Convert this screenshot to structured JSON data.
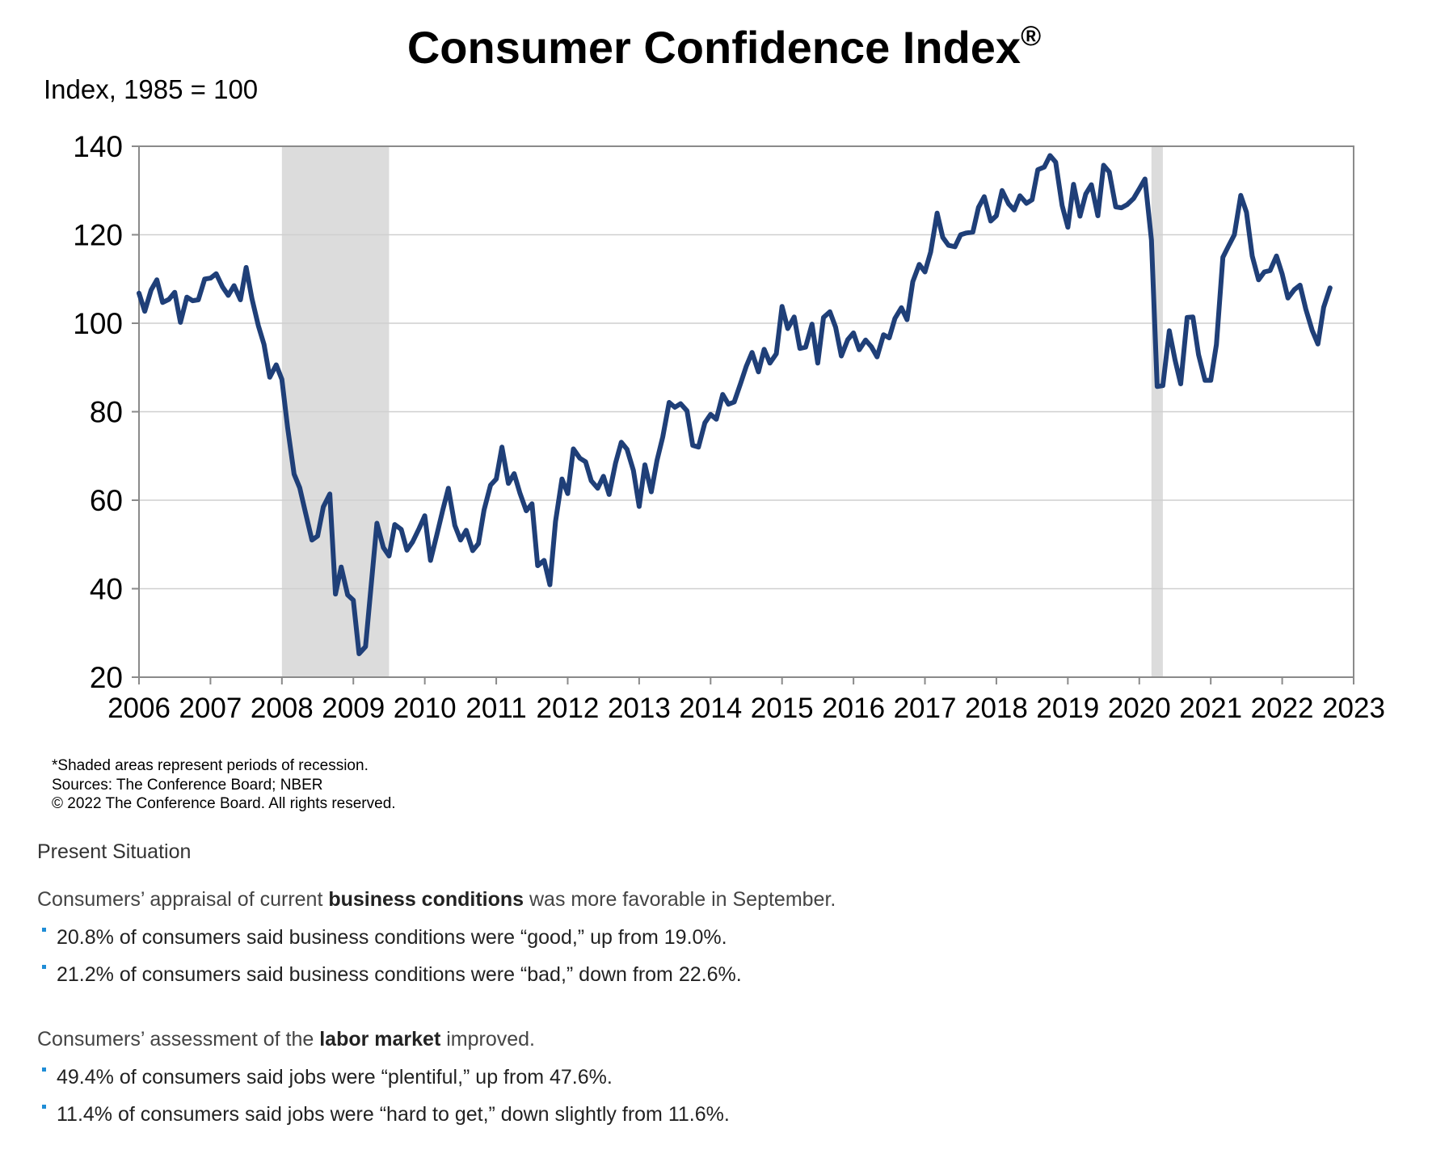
{
  "chart_data": {
    "type": "line",
    "title": "Consumer Confidence Index",
    "title_mark": "®",
    "ylabel": "Index, 1985 = 100",
    "ylim": [
      20,
      140
    ],
    "yticks": [
      "140",
      "120",
      "100",
      "80",
      "60",
      "40",
      "20"
    ],
    "xlim": [
      2006.0,
      2023.0
    ],
    "xticks": [
      "2006",
      "2007",
      "2008",
      "2009",
      "2010",
      "2011",
      "2012",
      "2013",
      "2014",
      "2015",
      "2016",
      "2017",
      "2018",
      "2019",
      "2020",
      "2021",
      "2022",
      "2023"
    ],
    "grid": true,
    "legend": "none",
    "line_color": "#1f3f78",
    "recession_color": "#dcdcdc",
    "recessions": [
      [
        2008.0,
        2009.5
      ],
      [
        2020.17,
        2020.33
      ]
    ],
    "series": [
      {
        "points": [
          [
            2006.0,
            106.8
          ],
          [
            2006.08,
            102.7
          ],
          [
            2006.17,
            107.5
          ],
          [
            2006.25,
            109.8
          ],
          [
            2006.33,
            104.7
          ],
          [
            2006.42,
            105.4
          ],
          [
            2006.5,
            107.0
          ],
          [
            2006.58,
            100.2
          ],
          [
            2006.67,
            105.9
          ],
          [
            2006.75,
            105.1
          ],
          [
            2006.83,
            105.3
          ],
          [
            2006.92,
            110.0
          ],
          [
            2007.0,
            110.2
          ],
          [
            2007.08,
            111.2
          ],
          [
            2007.17,
            108.2
          ],
          [
            2007.25,
            106.3
          ],
          [
            2007.33,
            108.5
          ],
          [
            2007.42,
            105.3
          ],
          [
            2007.5,
            112.6
          ],
          [
            2007.58,
            105.6
          ],
          [
            2007.67,
            99.5
          ],
          [
            2007.75,
            95.2
          ],
          [
            2007.83,
            87.8
          ],
          [
            2007.92,
            90.6
          ],
          [
            2008.0,
            87.3
          ],
          [
            2008.08,
            76.4
          ],
          [
            2008.17,
            65.9
          ],
          [
            2008.25,
            62.8
          ],
          [
            2008.33,
            57.2
          ],
          [
            2008.42,
            51.0
          ],
          [
            2008.5,
            51.9
          ],
          [
            2008.58,
            58.5
          ],
          [
            2008.67,
            61.4
          ],
          [
            2008.75,
            38.8
          ],
          [
            2008.83,
            44.9
          ],
          [
            2008.92,
            38.6
          ],
          [
            2009.0,
            37.4
          ],
          [
            2009.08,
            25.3
          ],
          [
            2009.17,
            26.9
          ],
          [
            2009.25,
            40.8
          ],
          [
            2009.33,
            54.8
          ],
          [
            2009.42,
            49.3
          ],
          [
            2009.5,
            47.4
          ],
          [
            2009.58,
            54.5
          ],
          [
            2009.67,
            53.4
          ],
          [
            2009.75,
            48.7
          ],
          [
            2009.83,
            50.6
          ],
          [
            2009.92,
            53.6
          ],
          [
            2010.0,
            56.5
          ],
          [
            2010.08,
            46.4
          ],
          [
            2010.17,
            52.3
          ],
          [
            2010.25,
            57.7
          ],
          [
            2010.33,
            62.7
          ],
          [
            2010.42,
            54.3
          ],
          [
            2010.5,
            51.0
          ],
          [
            2010.58,
            53.2
          ],
          [
            2010.67,
            48.6
          ],
          [
            2010.75,
            50.2
          ],
          [
            2010.83,
            57.8
          ],
          [
            2010.92,
            63.4
          ],
          [
            2011.0,
            64.8
          ],
          [
            2011.08,
            72.0
          ],
          [
            2011.17,
            63.8
          ],
          [
            2011.25,
            66.0
          ],
          [
            2011.33,
            61.7
          ],
          [
            2011.42,
            57.6
          ],
          [
            2011.5,
            59.2
          ],
          [
            2011.58,
            45.2
          ],
          [
            2011.67,
            46.4
          ],
          [
            2011.75,
            40.9
          ],
          [
            2011.83,
            55.2
          ],
          [
            2011.92,
            64.8
          ],
          [
            2012.0,
            61.5
          ],
          [
            2012.08,
            71.6
          ],
          [
            2012.17,
            69.5
          ],
          [
            2012.25,
            68.7
          ],
          [
            2012.33,
            64.4
          ],
          [
            2012.42,
            62.7
          ],
          [
            2012.5,
            65.4
          ],
          [
            2012.58,
            61.3
          ],
          [
            2012.67,
            68.4
          ],
          [
            2012.75,
            73.1
          ],
          [
            2012.83,
            71.5
          ],
          [
            2012.92,
            66.7
          ],
          [
            2013.0,
            58.6
          ],
          [
            2013.08,
            68.0
          ],
          [
            2013.17,
            61.9
          ],
          [
            2013.25,
            69.0
          ],
          [
            2013.33,
            74.3
          ],
          [
            2013.42,
            82.1
          ],
          [
            2013.5,
            81.0
          ],
          [
            2013.58,
            81.8
          ],
          [
            2013.67,
            80.2
          ],
          [
            2013.75,
            72.4
          ],
          [
            2013.83,
            72.0
          ],
          [
            2013.92,
            77.5
          ],
          [
            2014.0,
            79.4
          ],
          [
            2014.08,
            78.3
          ],
          [
            2014.17,
            83.9
          ],
          [
            2014.25,
            81.7
          ],
          [
            2014.33,
            82.2
          ],
          [
            2014.42,
            86.4
          ],
          [
            2014.5,
            90.3
          ],
          [
            2014.58,
            93.4
          ],
          [
            2014.67,
            89.0
          ],
          [
            2014.75,
            94.1
          ],
          [
            2014.83,
            91.0
          ],
          [
            2014.92,
            93.1
          ],
          [
            2015.0,
            103.8
          ],
          [
            2015.08,
            98.8
          ],
          [
            2015.17,
            101.4
          ],
          [
            2015.25,
            94.3
          ],
          [
            2015.33,
            94.6
          ],
          [
            2015.42,
            99.8
          ],
          [
            2015.5,
            91.0
          ],
          [
            2015.58,
            101.3
          ],
          [
            2015.67,
            102.6
          ],
          [
            2015.75,
            99.1
          ],
          [
            2015.83,
            92.6
          ],
          [
            2015.92,
            96.3
          ],
          [
            2016.0,
            97.8
          ],
          [
            2016.08,
            94.0
          ],
          [
            2016.17,
            96.2
          ],
          [
            2016.25,
            94.7
          ],
          [
            2016.33,
            92.4
          ],
          [
            2016.42,
            97.4
          ],
          [
            2016.5,
            96.7
          ],
          [
            2016.58,
            101.1
          ],
          [
            2016.67,
            103.5
          ],
          [
            2016.75,
            100.8
          ],
          [
            2016.83,
            109.4
          ],
          [
            2016.92,
            113.3
          ],
          [
            2017.0,
            111.6
          ],
          [
            2017.08,
            116.1
          ],
          [
            2017.17,
            124.9
          ],
          [
            2017.25,
            119.4
          ],
          [
            2017.33,
            117.6
          ],
          [
            2017.42,
            117.3
          ],
          [
            2017.5,
            120.0
          ],
          [
            2017.58,
            120.4
          ],
          [
            2017.67,
            120.6
          ],
          [
            2017.75,
            126.2
          ],
          [
            2017.83,
            128.6
          ],
          [
            2017.92,
            123.1
          ],
          [
            2018.0,
            124.3
          ],
          [
            2018.08,
            130.0
          ],
          [
            2018.17,
            127.0
          ],
          [
            2018.25,
            125.6
          ],
          [
            2018.33,
            128.8
          ],
          [
            2018.42,
            127.1
          ],
          [
            2018.5,
            127.9
          ],
          [
            2018.58,
            134.7
          ],
          [
            2018.67,
            135.3
          ],
          [
            2018.75,
            137.9
          ],
          [
            2018.83,
            136.4
          ],
          [
            2018.92,
            126.6
          ],
          [
            2019.0,
            121.7
          ],
          [
            2019.08,
            131.4
          ],
          [
            2019.17,
            124.2
          ],
          [
            2019.25,
            129.2
          ],
          [
            2019.33,
            131.3
          ],
          [
            2019.42,
            124.3
          ],
          [
            2019.5,
            135.7
          ],
          [
            2019.58,
            134.2
          ],
          [
            2019.67,
            126.3
          ],
          [
            2019.75,
            126.1
          ],
          [
            2019.83,
            126.8
          ],
          [
            2019.92,
            128.2
          ],
          [
            2020.0,
            130.4
          ],
          [
            2020.08,
            132.6
          ],
          [
            2020.17,
            118.8
          ],
          [
            2020.25,
            85.7
          ],
          [
            2020.33,
            85.9
          ],
          [
            2020.42,
            98.3
          ],
          [
            2020.5,
            91.7
          ],
          [
            2020.58,
            86.3
          ],
          [
            2020.67,
            101.3
          ],
          [
            2020.75,
            101.4
          ],
          [
            2020.83,
            92.9
          ],
          [
            2020.92,
            87.1
          ],
          [
            2021.0,
            87.1
          ],
          [
            2021.08,
            95.2
          ],
          [
            2021.17,
            114.9
          ],
          [
            2021.25,
            117.5
          ],
          [
            2021.33,
            120.0
          ],
          [
            2021.42,
            128.9
          ],
          [
            2021.5,
            125.1
          ],
          [
            2021.58,
            115.2
          ],
          [
            2021.67,
            109.8
          ],
          [
            2021.75,
            111.6
          ],
          [
            2021.83,
            111.9
          ],
          [
            2021.92,
            115.2
          ],
          [
            2022.0,
            111.1
          ],
          [
            2022.08,
            105.7
          ],
          [
            2022.17,
            107.6
          ],
          [
            2022.25,
            108.6
          ],
          [
            2022.33,
            103.2
          ],
          [
            2022.42,
            98.4
          ],
          [
            2022.5,
            95.3
          ],
          [
            2022.58,
            103.6
          ],
          [
            2022.67,
            108.0
          ]
        ]
      }
    ]
  },
  "footnotes": [
    "*Shaded areas represent periods of recession.",
    "Sources: The  Conference Board;  NBER",
    "© 2022 The Conference Board. All rights reserved."
  ],
  "commentary": {
    "heading": "Present Situation",
    "business": {
      "lead_pre": "Consumers’ appraisal of current ",
      "lead_bold": "business conditions",
      "lead_post": " was more favorable in September.",
      "bullets": [
        "20.8% of consumers said business conditions were “good,” up from 19.0%.",
        "21.2% of consumers said business conditions were “bad,” down from 22.6%."
      ]
    },
    "labor": {
      "lead_pre": "Consumers’ assessment of the ",
      "lead_bold": "labor market",
      "lead_post": " improved.",
      "bullets": [
        "49.4% of consumers said jobs were “plentiful,” up from 47.6%.",
        "11.4% of consumers said jobs were “hard to get,” down slightly from 11.6%."
      ]
    }
  }
}
